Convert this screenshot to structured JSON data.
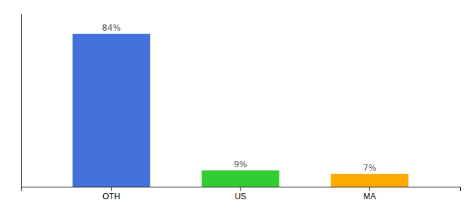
{
  "chart_data": {
    "type": "bar",
    "categories": [
      "OTH",
      "US",
      "MA"
    ],
    "values": [
      84,
      9,
      7
    ],
    "value_labels": [
      "84%",
      "9%",
      "7%"
    ],
    "colors": [
      "#4472db",
      "#33cc33",
      "#ffaa00"
    ],
    "ylim": [
      0,
      95
    ],
    "data_labels": true,
    "tick_labels": "x"
  }
}
